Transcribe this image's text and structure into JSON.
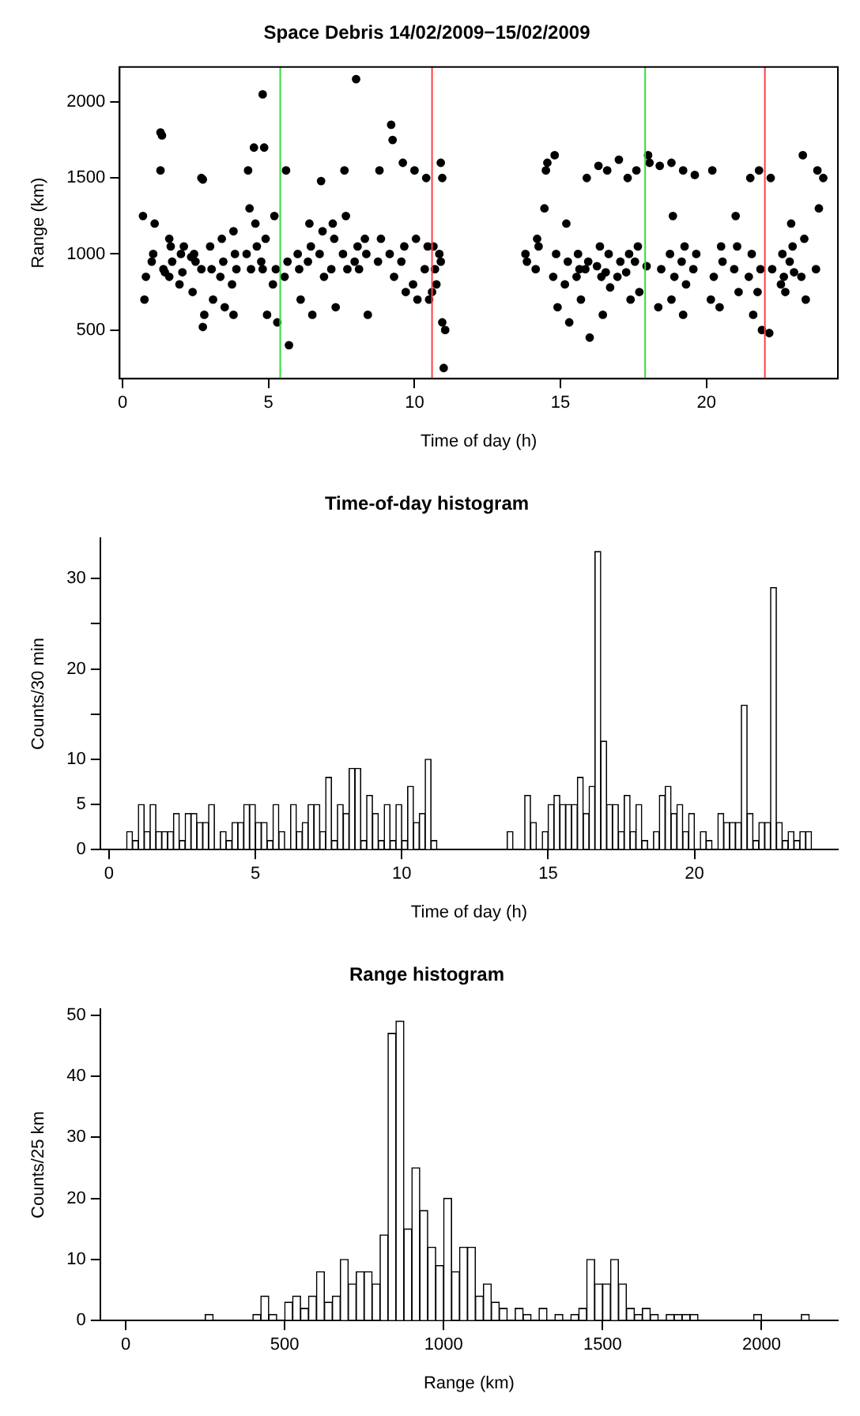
{
  "chart_data": [
    {
      "type": "scatter",
      "title": "Space Debris 14/02/2009−15/02/2009",
      "xlabel": "Time of day (h)",
      "ylabel": "Range (km)",
      "xlim": [
        -0.1,
        24.5
      ],
      "ylim": [
        180,
        2230
      ],
      "xticks": [
        0,
        5,
        10,
        15,
        20
      ],
      "yticks": [
        500,
        1000,
        1500,
        2000
      ],
      "grid": false,
      "marker": "circle",
      "ref_lines": [
        {
          "axis": "x",
          "value": 5.4,
          "color": "#33dd33"
        },
        {
          "axis": "x",
          "value": 10.6,
          "color": "#ff4040"
        },
        {
          "axis": "x",
          "value": 17.9,
          "color": "#33dd33"
        },
        {
          "axis": "x",
          "value": 22,
          "color": "#ff4040"
        }
      ],
      "series": [
        {
          "color": "#000000",
          "x": [
            0.7,
            0.75,
            0.8,
            1.0,
            1.05,
            1.1,
            1.3,
            1.35,
            1.3,
            1.4,
            1.45,
            1.6,
            1.65,
            1.7,
            1.6,
            2.0,
            2.05,
            2.1,
            1.95,
            2.4,
            2.45,
            2.35,
            2.5,
            2.7,
            2.75,
            2.7,
            2.8,
            2.75,
            3.0,
            3.05,
            3.1,
            3.4,
            3.45,
            3.35,
            3.5,
            3.8,
            3.85,
            3.9,
            3.75,
            3.8,
            4.3,
            4.35,
            4.25,
            4.4,
            4.5,
            4.55,
            4.6,
            4.8,
            4.85,
            4.9,
            4.75,
            4.8,
            4.95,
            5.2,
            5.25,
            5.15,
            5.3,
            5.6,
            5.65,
            5.55,
            5.7,
            6.0,
            6.05,
            6.1,
            6.4,
            6.45,
            6.35,
            6.5,
            6.8,
            6.85,
            6.75,
            6.9,
            7.2,
            7.25,
            7.15,
            7.3,
            7.6,
            7.65,
            7.55,
            7.7,
            8.0,
            8.05,
            7.95,
            8.1,
            8.3,
            8.35,
            8.4,
            8.8,
            8.85,
            8.75,
            9.2,
            9.25,
            9.15,
            9.3,
            9.6,
            9.65,
            9.55,
            9.7,
            10.0,
            10.05,
            9.95,
            10.1,
            10.4,
            10.45,
            10.35,
            10.5,
            10.65,
            10.7,
            10.75,
            10.6,
            10.9,
            10.95,
            10.85,
            10.9,
            10.95,
            11.0,
            11.05,
            13.8,
            13.85,
            14.2,
            14.25,
            14.15,
            14.5,
            14.55,
            14.45,
            14.8,
            14.85,
            14.75,
            14.9,
            15.2,
            15.25,
            15.15,
            15.3,
            15.6,
            15.65,
            15.55,
            15.7,
            15.9,
            15.95,
            15.85,
            16.0,
            16.3,
            16.35,
            16.25,
            16.4,
            16.45,
            16.6,
            16.65,
            16.55,
            16.7,
            17.0,
            17.05,
            16.95,
            17.3,
            17.35,
            17.25,
            17.4,
            17.6,
            17.65,
            17.55,
            17.7,
            18.0,
            18.05,
            17.95,
            18.4,
            18.45,
            18.35,
            18.8,
            18.85,
            18.75,
            18.9,
            18.8,
            19.2,
            19.25,
            19.15,
            19.3,
            19.2,
            19.6,
            19.65,
            19.55,
            20.2,
            20.25,
            20.15,
            20.5,
            20.55,
            20.45,
            21.0,
            21.05,
            20.95,
            21.1,
            21.5,
            21.55,
            21.45,
            21.6,
            21.8,
            21.85,
            21.75,
            21.9,
            22.2,
            22.25,
            22.15,
            22.6,
            22.65,
            22.55,
            22.7,
            22.9,
            22.95,
            22.85,
            23.0,
            23.3,
            23.35,
            23.25,
            23.4,
            23.8,
            23.85,
            23.75,
            24.0
          ],
          "values": [
            1250,
            700,
            850,
            950,
            1000,
            1200,
            1800,
            1780,
            1550,
            900,
            880,
            1100,
            1050,
            950,
            850,
            1000,
            880,
            1050,
            800,
            750,
            1000,
            980,
            950,
            1500,
            1490,
            900,
            600,
            520,
            1050,
            900,
            700,
            1100,
            950,
            850,
            650,
            1150,
            1000,
            900,
            800,
            600,
            1550,
            1300,
            1000,
            900,
            1700,
            1200,
            1050,
            2050,
            1700,
            1100,
            950,
            900,
            600,
            1250,
            900,
            800,
            550,
            1550,
            950,
            850,
            400,
            1000,
            900,
            700,
            1200,
            1050,
            950,
            600,
            1480,
            1150,
            1000,
            850,
            1200,
            1100,
            900,
            650,
            1550,
            1250,
            1000,
            900,
            2150,
            1050,
            950,
            900,
            1100,
            1000,
            600,
            1550,
            1100,
            950,
            1850,
            1750,
            1000,
            850,
            1600,
            1050,
            950,
            750,
            1550,
            1100,
            800,
            700,
            1500,
            1050,
            900,
            700,
            1050,
            900,
            800,
            750,
            1600,
            1500,
            1000,
            950,
            550,
            250,
            500,
            1000,
            950,
            1100,
            1050,
            900,
            1550,
            1600,
            1300,
            1650,
            1000,
            850,
            650,
            1200,
            950,
            800,
            550,
            1000,
            900,
            850,
            700,
            1500,
            950,
            900,
            450,
            1580,
            1050,
            920,
            850,
            600,
            1550,
            1000,
            880,
            780,
            1620,
            950,
            850,
            1500,
            1000,
            880,
            700,
            1550,
            1050,
            950,
            750,
            1650,
            1600,
            920,
            1580,
            900,
            650,
            1600,
            1250,
            1000,
            850,
            700,
            1550,
            1050,
            950,
            800,
            600,
            1520,
            1000,
            900,
            1550,
            850,
            700,
            1050,
            950,
            650,
            1250,
            1050,
            900,
            750,
            1500,
            1000,
            850,
            600,
            1550,
            900,
            750,
            500,
            1500,
            900,
            480,
            1000,
            850,
            800,
            750,
            1200,
            1050,
            950,
            880,
            1650,
            1100,
            850,
            700,
            1550,
            1300,
            900,
            1500
          ]
        }
      ]
    },
    {
      "type": "histogram",
      "title": "Time-of-day histogram",
      "xlabel": "Time of day (h)",
      "ylabel": "Counts/30 min",
      "xlim": [
        -0.3,
        24.9
      ],
      "ylim": [
        0,
        34.5
      ],
      "xticks": [
        0,
        5,
        10,
        15,
        20
      ],
      "yticks": [
        0,
        5,
        10,
        {
          "value": 15,
          "label": null
        },
        20,
        {
          "value": 25,
          "label": null
        },
        30
      ],
      "grid": false,
      "color": "#ffffff",
      "bins": [
        0.6,
        0.8,
        1,
        1.2,
        1.4,
        1.6,
        1.8,
        2,
        2.2,
        2.4,
        2.6,
        2.8,
        3,
        3.2,
        3.4,
        3.6,
        3.8,
        4,
        4.2,
        4.4,
        4.6,
        4.8,
        5,
        5.2,
        5.4,
        5.6,
        5.8,
        6,
        6.2,
        6.4,
        6.6,
        6.8,
        7,
        7.2,
        7.4,
        7.6,
        7.8,
        8,
        8.2,
        8.4,
        8.6,
        8.8,
        9,
        9.2,
        9.4,
        9.6,
        9.8,
        10,
        10.2,
        10.4,
        10.6,
        10.8,
        11,
        11.2,
        11.4,
        11.6,
        11.8,
        12,
        12.2,
        12.4,
        12.6,
        12.8,
        13,
        13.2,
        13.4,
        13.6,
        13.8,
        14,
        14.2,
        14.4,
        14.6,
        14.8,
        15,
        15.2,
        15.4,
        15.6,
        15.8,
        16,
        16.2,
        16.4,
        16.6,
        16.8,
        17,
        17.2,
        17.4,
        17.6,
        17.8,
        18,
        18.2,
        18.4,
        18.6,
        18.8,
        19,
        19.2,
        19.4,
        19.6,
        19.8,
        20,
        20.2,
        20.4,
        20.6,
        20.8,
        21,
        21.2,
        21.4,
        21.6,
        21.8,
        22,
        22.2,
        22.4,
        22.6,
        22.8,
        23,
        23.2,
        23.4,
        23.6,
        23.8,
        24
      ],
      "values": [
        2,
        1,
        5,
        2,
        5,
        2,
        2,
        2,
        4,
        1,
        4,
        4,
        3,
        3,
        5,
        0,
        2,
        1,
        3,
        3,
        5,
        5,
        3,
        3,
        1,
        5,
        2,
        0,
        5,
        2,
        3,
        5,
        5,
        2,
        8,
        1,
        5,
        4,
        9,
        9,
        1,
        6,
        4,
        1,
        5,
        1,
        5,
        1,
        7,
        3,
        4,
        10,
        1,
        0,
        0,
        0,
        0,
        0,
        0,
        0,
        0,
        0,
        0,
        0,
        0,
        2,
        0,
        0,
        6,
        3,
        0,
        2,
        5,
        6,
        5,
        5,
        5,
        8,
        4,
        7,
        33,
        12,
        5,
        5,
        2,
        6,
        2,
        5,
        1,
        0,
        2,
        6,
        7,
        4,
        5,
        2,
        4,
        0,
        2,
        1,
        0,
        4,
        3,
        3,
        3,
        16,
        4,
        1,
        3,
        3,
        29,
        3,
        1,
        2,
        1,
        2,
        2
      ]
    },
    {
      "type": "histogram",
      "title": "Range histogram",
      "xlabel": "Range (km)",
      "ylabel": "Counts/25 km",
      "xlim": [
        -80,
        2240
      ],
      "ylim": [
        0,
        51
      ],
      "xticks": [
        0,
        500,
        1000,
        1500,
        2000
      ],
      "yticks": [
        0,
        10,
        20,
        30,
        40,
        50
      ],
      "grid": false,
      "color": "#ffffff",
      "bins": [
        250,
        275,
        300,
        325,
        350,
        375,
        400,
        425,
        450,
        475,
        500,
        525,
        550,
        575,
        600,
        625,
        650,
        675,
        700,
        725,
        750,
        775,
        800,
        825,
        850,
        875,
        900,
        925,
        950,
        975,
        1000,
        1025,
        1050,
        1075,
        1100,
        1125,
        1150,
        1175,
        1200,
        1225,
        1250,
        1275,
        1300,
        1325,
        1350,
        1375,
        1400,
        1425,
        1450,
        1475,
        1500,
        1525,
        1550,
        1575,
        1600,
        1625,
        1650,
        1675,
        1700,
        1725,
        1750,
        1775,
        1800,
        1825,
        1850,
        1875,
        1900,
        1925,
        1950,
        1975,
        2000,
        2025,
        2050,
        2075,
        2100,
        2125,
        2150
      ],
      "values": [
        1,
        0,
        0,
        0,
        0,
        0,
        1,
        4,
        1,
        0,
        3,
        4,
        2,
        4,
        8,
        3,
        4,
        10,
        6,
        8,
        8,
        6,
        14,
        47,
        49,
        15,
        25,
        18,
        12,
        9,
        20,
        8,
        12,
        12,
        4,
        6,
        3,
        2,
        0,
        2,
        1,
        0,
        2,
        0,
        1,
        0,
        1,
        2,
        10,
        6,
        6,
        10,
        6,
        2,
        1,
        2,
        1,
        0,
        1,
        1,
        1,
        1,
        0,
        0,
        0,
        0,
        0,
        0,
        0,
        1,
        0,
        0,
        0,
        0,
        0,
        1
      ]
    }
  ]
}
